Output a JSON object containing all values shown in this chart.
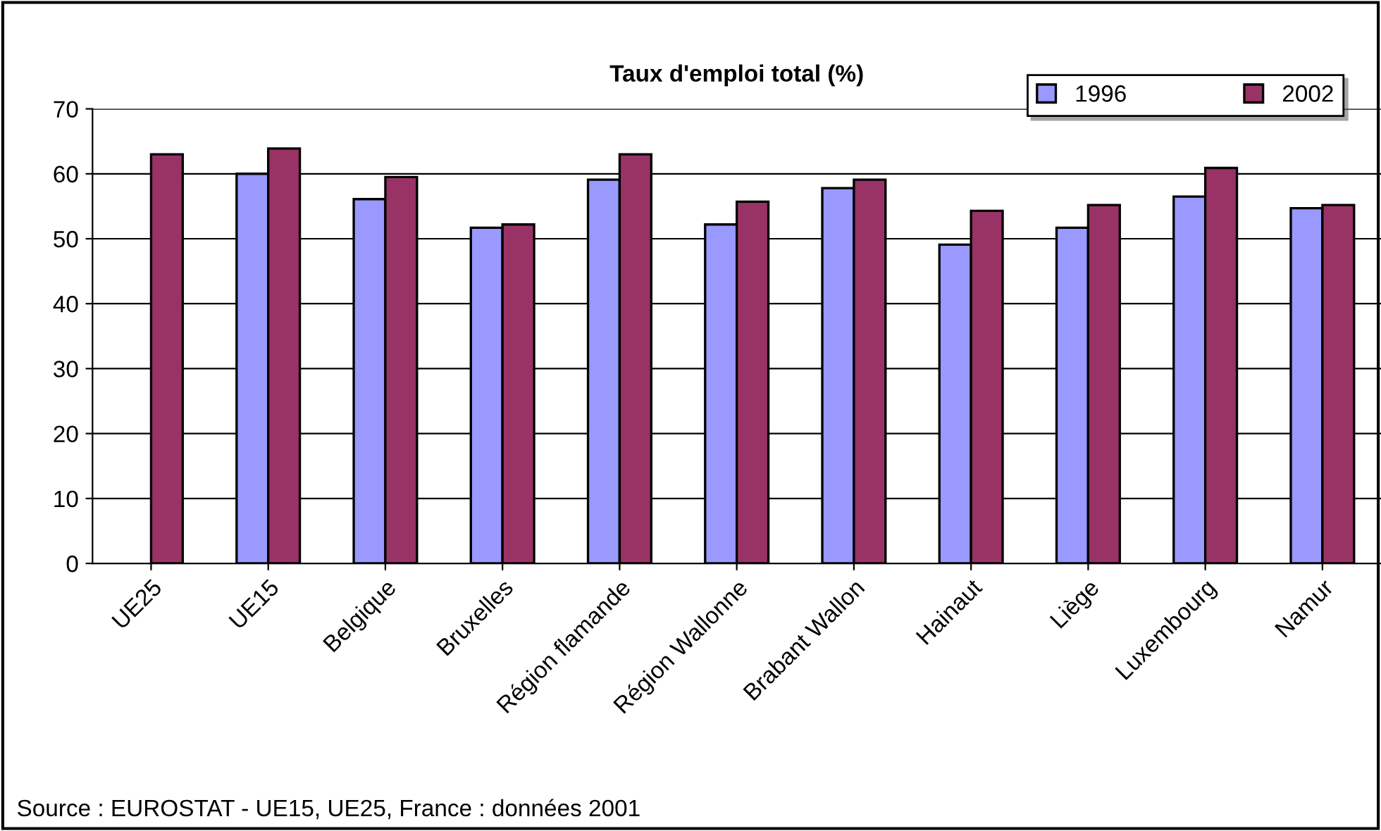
{
  "chart_data": {
    "type": "bar",
    "title": "Taux d'emploi total (%)",
    "categories": [
      "UE25",
      "UE15",
      "Belgique",
      "Bruxelles",
      "Région flamande",
      "Région Wallonne",
      "Brabant Wallon",
      "Hainaut",
      "Liège",
      "Luxembourg",
      "Namur"
    ],
    "series": [
      {
        "name": "1996",
        "color": "#9999ff",
        "values": [
          null,
          60.0,
          56.1,
          51.7,
          59.1,
          52.2,
          57.8,
          49.1,
          51.7,
          56.5,
          54.7
        ]
      },
      {
        "name": "2002",
        "color": "#993366",
        "values": [
          63.0,
          63.9,
          59.5,
          52.2,
          63.0,
          55.7,
          59.1,
          54.3,
          55.2,
          60.9,
          55.2
        ]
      }
    ],
    "ylim": [
      0,
      70
    ],
    "yticks": [
      0,
      10,
      20,
      30,
      40,
      50,
      60,
      70
    ],
    "grid": "y",
    "legend": "top right",
    "annotations": [
      "Source : EUROSTAT - UE15, UE25, France : données 2001"
    ]
  }
}
